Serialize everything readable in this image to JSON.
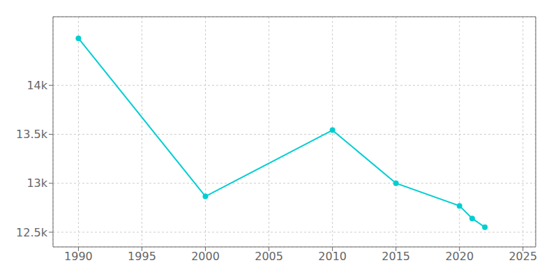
{
  "chart_data": {
    "type": "line",
    "x": [
      1990,
      2000,
      2010,
      2015,
      2020,
      2021,
      2022
    ],
    "values": [
      14480,
      12866,
      13542,
      13000,
      12769,
      12641,
      12551
    ],
    "color": "#00CED1",
    "marker": "circle",
    "xlim": [
      1988,
      2026
    ],
    "ylim": [
      12350,
      14700
    ],
    "xticks": [
      1990,
      1995,
      2000,
      2005,
      2010,
      2015,
      2020,
      2025
    ],
    "yticks": [
      {
        "value": 12500,
        "label": "12.5k"
      },
      {
        "value": 13000,
        "label": "13k"
      },
      {
        "value": 13500,
        "label": "13.5k"
      },
      {
        "value": 14000,
        "label": "14k"
      }
    ],
    "grid": true
  }
}
